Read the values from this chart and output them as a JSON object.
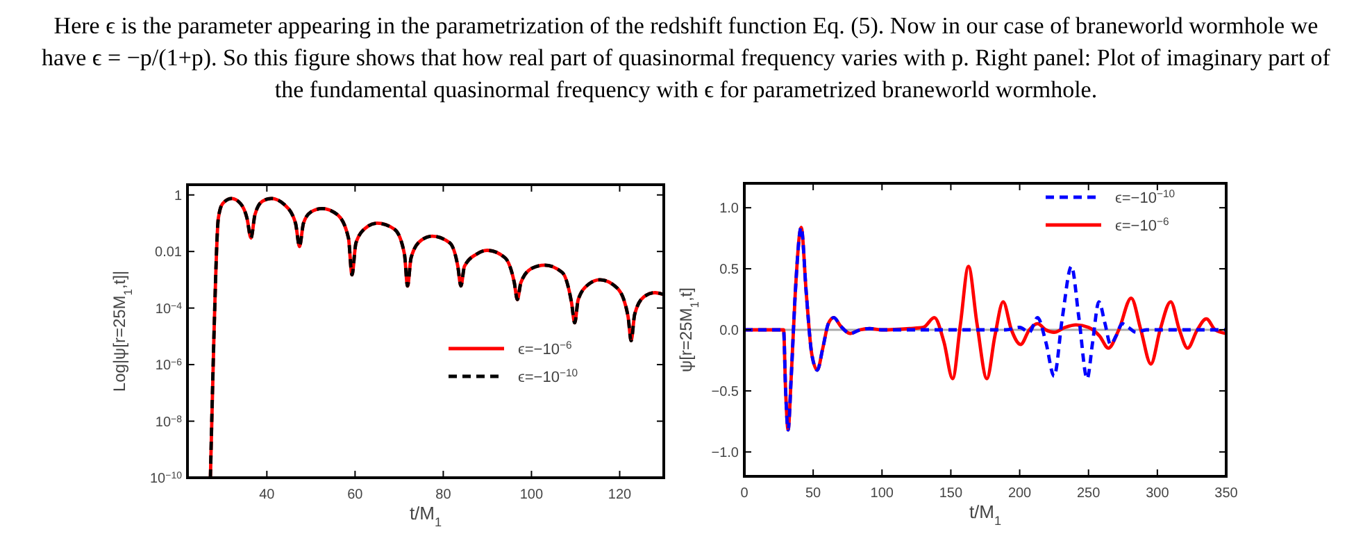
{
  "chart_data": [
    {
      "type": "line",
      "xlabel": "t/M$_{1}$",
      "ylabel": "Log|ψ[r=25M$_{1}$,t]|",
      "log": "y",
      "xlim": [
        22,
        130
      ],
      "ylim": [
        1e-10,
        2.3
      ],
      "xticks": [
        40,
        60,
        80,
        100,
        120
      ],
      "yticks": [
        1,
        0.01,
        {
          "value": 0.0001,
          "label": "10$^{−4}$"
        },
        {
          "value": 1e-06,
          "label": "10$^{−6}$"
        },
        {
          "value": 1e-08,
          "label": "10$^{−8}$"
        },
        {
          "value": 1e-10,
          "label": "10$^{−10}$"
        }
      ],
      "legend": "right",
      "annotations": [
        "Here ϵ is the parameter appearing in the parametrization of the redshift function Eq. (5). Now in our case of braneworld wormhole we have ϵ = −p/(1+p). So this figure shows that how real part of quasinormal frequency varies with p. Right panel: Plot of imaginary part of the fundamental quasinormal frequency with ϵ for parametrized braneworld wormhole."
      ],
      "x": [
        27.2,
        28,
        29,
        30,
        32,
        34,
        35.5,
        36.4,
        37.3,
        39,
        41,
        44,
        46.5,
        47.4,
        48.3,
        50,
        52.5,
        56,
        58.5,
        59.3,
        60.2,
        62.5,
        65,
        69,
        71.2,
        71.9,
        72.7,
        75,
        77.5,
        81.5,
        83.3,
        84,
        84.8,
        87.5,
        90,
        94,
        96.1,
        96.8,
        97.6,
        100,
        103,
        107,
        109.1,
        109.8,
        110.6,
        113,
        115.5,
        119.5,
        121.9,
        122.6,
        123.4,
        125.5,
        128,
        130
      ],
      "series": [
        {
          "name": "ϵ=−10$^{−6}$",
          "color": "#ff0000",
          "line_style": "solid",
          "values": [
            1e-10,
            1e-05,
            0.15,
            0.5,
            0.75,
            0.5,
            0.15,
            0.03,
            0.2,
            0.6,
            0.75,
            0.45,
            0.1,
            0.015,
            0.1,
            0.25,
            0.33,
            0.2,
            0.03,
            0.0015,
            0.02,
            0.07,
            0.1,
            0.06,
            0.008,
            0.0006,
            0.006,
            0.025,
            0.035,
            0.02,
            0.003,
            0.0006,
            0.003,
            0.008,
            0.011,
            0.006,
            0.0008,
            0.0002,
            0.0008,
            0.0025,
            0.0033,
            0.0018,
            0.00015,
            3e-05,
            0.0002,
            0.0007,
            0.001,
            0.0005,
            5e-05,
            7e-06,
            6e-05,
            0.00025,
            0.00035,
            0.0003
          ]
        },
        {
          "name": "ϵ=−10$^{−10}$",
          "color": "#000000",
          "line_style": "dashed",
          "values": [
            1e-10,
            1e-05,
            0.15,
            0.5,
            0.75,
            0.5,
            0.15,
            0.03,
            0.2,
            0.6,
            0.75,
            0.45,
            0.1,
            0.015,
            0.1,
            0.25,
            0.33,
            0.2,
            0.03,
            0.0015,
            0.02,
            0.07,
            0.1,
            0.06,
            0.008,
            0.0006,
            0.006,
            0.025,
            0.035,
            0.02,
            0.003,
            0.0006,
            0.003,
            0.008,
            0.011,
            0.006,
            0.0008,
            0.0002,
            0.0008,
            0.0025,
            0.0033,
            0.0018,
            0.00015,
            3e-05,
            0.0002,
            0.0007,
            0.001,
            0.0005,
            5e-05,
            7e-06,
            6e-05,
            0.00025,
            0.00035,
            0.0003
          ]
        }
      ]
    },
    {
      "type": "line",
      "xlabel": "t/M$_{1}$",
      "ylabel": "ψ[r=25M$_{1}$,t]",
      "xlim": [
        0,
        350
      ],
      "ylim": [
        -1.2,
        1.2
      ],
      "xticks": [
        0,
        50,
        100,
        150,
        200,
        250,
        300,
        350
      ],
      "yticks": [
        {
          "value": -1,
          "label": "−1.0"
        },
        {
          "value": -0.5,
          "label": "−0.5"
        },
        {
          "value": 0,
          "label": "0.0"
        },
        {
          "value": 0.5,
          "label": "0.5"
        },
        {
          "value": 1,
          "label": "1.0"
        }
      ],
      "legend": "top right",
      "ref_lines": [
        {
          "axis": "y",
          "value": 0,
          "color": "#aaaaaa"
        }
      ],
      "series": [
        {
          "name": "ϵ=−10$^{−10}$",
          "color": "#0000ff",
          "line_style": "dashed",
          "x": [
            0,
            27,
            28.5,
            30,
            31.8,
            34,
            37,
            41.3,
            45,
            49,
            53,
            57,
            61,
            65,
            70,
            77,
            84,
            91,
            100,
            190,
            200,
            207,
            213,
            219,
            225,
            231,
            237.6,
            243,
            249,
            253,
            257.5,
            262,
            266,
            270,
            274.5,
            279,
            284.5,
            292,
            350
          ],
          "values": [
            0,
            0,
            0,
            -0.5,
            -0.82,
            -0.4,
            0.3,
            0.84,
            0.3,
            -0.2,
            -0.33,
            -0.15,
            0.05,
            0.1,
            0.03,
            -0.03,
            0,
            0.01,
            0,
            0,
            0.02,
            -0.02,
            0.1,
            -0.1,
            -0.38,
            0.1,
            0.52,
            0.1,
            -0.4,
            -0.1,
            0.23,
            0.05,
            -0.12,
            -0.05,
            0.05,
            0.02,
            -0.02,
            0,
            0
          ]
        },
        {
          "name": "ϵ=−10$^{−6}$",
          "color": "#ff0000",
          "line_style": "solid",
          "x": [
            0,
            27,
            28.5,
            30,
            31.8,
            34,
            37,
            41.3,
            45,
            49,
            53,
            57,
            61,
            65,
            70,
            77,
            84,
            91,
            100,
            120,
            130,
            138,
            145,
            151.3,
            157,
            162.8,
            169,
            176.2,
            182,
            188,
            194,
            200.7,
            207,
            213,
            219,
            225,
            233,
            241,
            250,
            258,
            264.4,
            272,
            281,
            288,
            295.3,
            302,
            309.7,
            316,
            322,
            329,
            335.6,
            342,
            350
          ],
          "values": [
            0,
            0,
            0,
            -0.5,
            -0.82,
            -0.4,
            0.3,
            0.84,
            0.3,
            -0.2,
            -0.33,
            -0.15,
            0.05,
            0.1,
            0.03,
            -0.03,
            0,
            0.01,
            0,
            0.01,
            0.02,
            0.1,
            -0.1,
            -0.4,
            0.05,
            0.52,
            0.05,
            -0.4,
            -0.05,
            0.23,
            0,
            -0.12,
            0,
            0.05,
            0,
            -0.02,
            0.02,
            0.04,
            0.02,
            -0.05,
            -0.15,
            0,
            0.26,
            0,
            -0.28,
            0,
            0.23,
            0,
            -0.15,
            0,
            0.09,
            0,
            -0.03
          ]
        }
      ]
    }
  ]
}
